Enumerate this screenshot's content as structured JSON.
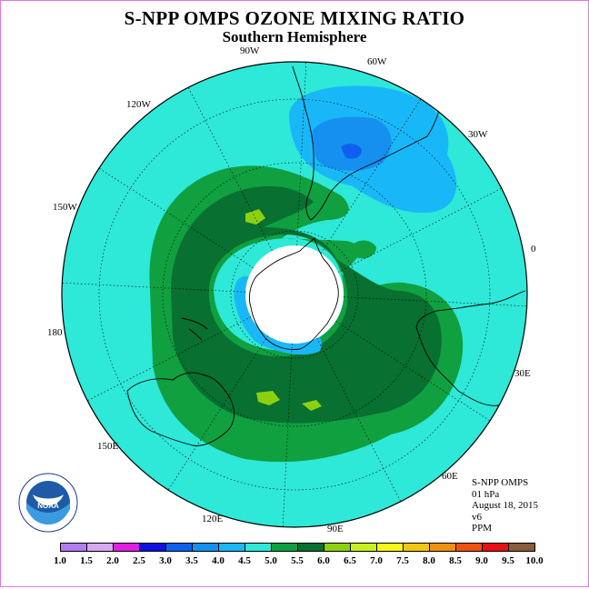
{
  "header": {
    "title": "S-NPP OMPS OZONE MIXING RATIO",
    "subtitle": "Southern Hemisphere"
  },
  "longitude_labels": {
    "lon_90w": "90W",
    "lon_60w": "60W",
    "lon_30w": "30W",
    "lon_120w": "120W",
    "lon_150w": "150W",
    "lon_0": "0",
    "lon_180": "180",
    "lon_30e": "30E",
    "lon_150e": "150E",
    "lon_60e": "60E",
    "lon_120e": "120E",
    "lon_90e": "90E"
  },
  "info": {
    "instrument": "S-NPP OMPS",
    "level": "01 hPa",
    "date": "August 18, 2015",
    "version": "v6",
    "units": "PPM"
  },
  "logo": {
    "text": "NOAA",
    "ring_text": "NATIONAL OCEANIC AND ATMOSPHERIC ADMINISTRATION · U.S. DEPARTMENT OF COMMERCE"
  },
  "colorbar": {
    "labels": [
      "1.0",
      "1.5",
      "2.0",
      "2.5",
      "3.0",
      "3.5",
      "4.0",
      "4.5",
      "5.0",
      "5.5",
      "6.0",
      "6.5",
      "7.0",
      "7.5",
      "8.0",
      "8.5",
      "9.0",
      "9.5",
      "10.0"
    ],
    "colors": [
      "#b07ef0",
      "#d8a8f0",
      "#e020e0",
      "#1010e0",
      "#1060f0",
      "#1690f0",
      "#18b8f8",
      "#2ee8d8",
      "#10a040",
      "#087030",
      "#8cd010",
      "#c8f020",
      "#f8f818",
      "#f0c810",
      "#f09010",
      "#f05010",
      "#e81010",
      "#8c5a3c"
    ]
  },
  "map_colors": {
    "background_ozone": "#2ee8d8",
    "band_5_5": "#10a040",
    "band_6_0": "#087030",
    "peak_6_5": "#8cd010",
    "low_4_0": "#18b8f8",
    "low_3_5": "#1690f0",
    "low_3_0": "#1060f0",
    "no_data": "#ffffff"
  }
}
